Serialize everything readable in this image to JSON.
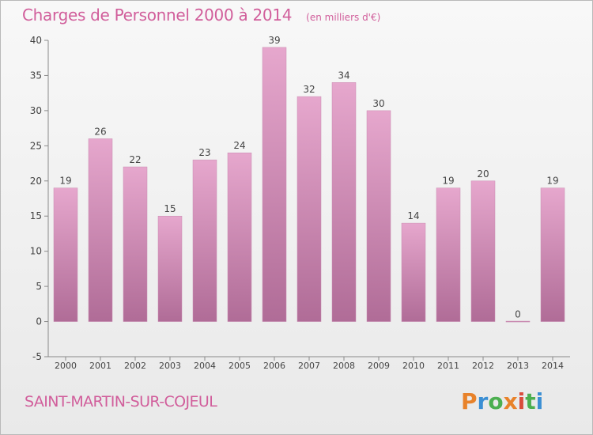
{
  "header": {
    "title": "Charges de Personnel 2000 à 2014",
    "subtitle": "(en milliers d'€)"
  },
  "footer": {
    "commune": "SAINT-MARTIN-SUR-COJEUL",
    "logo": "Proxiti"
  },
  "colors": {
    "bar_top": "#e6a7cd",
    "bar_bottom": "#b06c97",
    "title": "#d15e9b"
  },
  "chart_data": {
    "type": "bar",
    "title": "Charges de Personnel 2000 à 2014",
    "subtitle": "(en milliers d'€)",
    "categories": [
      "2000",
      "2001",
      "2002",
      "2003",
      "2004",
      "2005",
      "2006",
      "2007",
      "2008",
      "2009",
      "2010",
      "2011",
      "2012",
      "2013",
      "2014"
    ],
    "values": [
      19,
      26,
      22,
      15,
      23,
      24,
      39,
      32,
      34,
      30,
      14,
      19,
      20,
      0,
      19
    ],
    "data_labels": [
      "19",
      "26",
      "22",
      "15",
      "23",
      "24",
      "39",
      "32",
      "34",
      "30",
      "14",
      "19",
      "20",
      "0",
      "19"
    ],
    "y_ticks": [
      "-5",
      "0",
      "5",
      "10",
      "15",
      "20",
      "25",
      "30",
      "35",
      "40"
    ],
    "ylim": [
      -5,
      40
    ],
    "xlabel": "",
    "ylabel": "",
    "grid": false,
    "legend": "none"
  }
}
